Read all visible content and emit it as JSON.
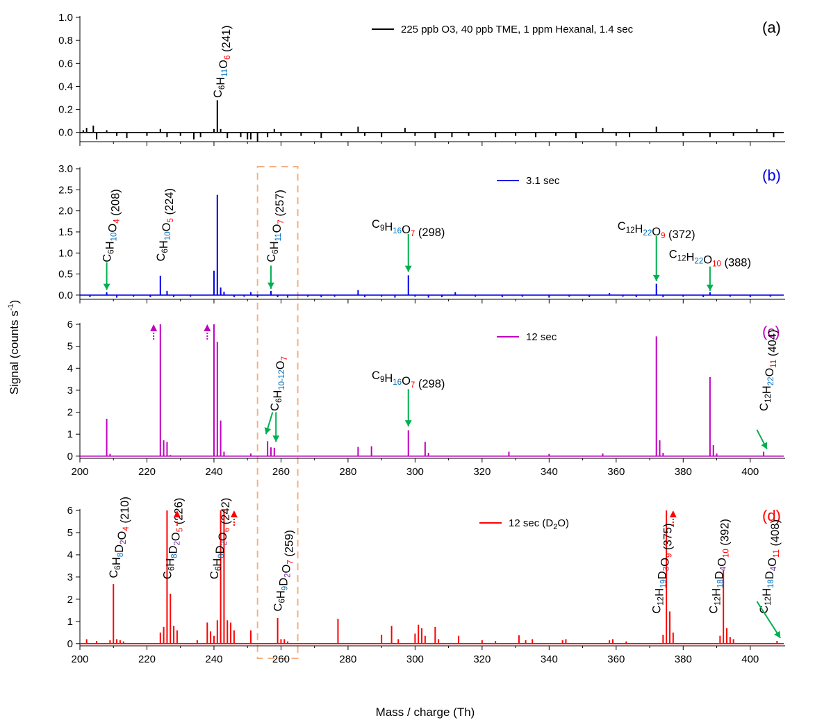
{
  "figure": {
    "ylabel": "Signal (counts s",
    "ylabel_sup": "-1",
    "ylabel_close": ")",
    "xlabel": "Mass / charge (Th)"
  },
  "colors": {
    "a": "#000000",
    "b": "#0000e6",
    "c": "#c000c0",
    "d": "#ff0000",
    "H": "#0070c0",
    "O": "#ff0000",
    "D": "#7030a0",
    "arrow": "#00b050",
    "box": "#f4b183"
  },
  "chart_data": [
    {
      "type": "line",
      "panel": "(a)",
      "legend": "225 ppb O3, 40 ppb TME, 1 ppm Hexanal, 1.4 sec",
      "xlim": [
        200,
        410
      ],
      "ylim": [
        -0.08,
        1.0
      ],
      "yticks": [
        0.0,
        0.2,
        0.4,
        0.6,
        0.8,
        1.0
      ],
      "peaks": [
        [
          201,
          0.02
        ],
        [
          202,
          0.04
        ],
        [
          204,
          0.06
        ],
        [
          205,
          -0.06
        ],
        [
          208,
          0.02
        ],
        [
          211,
          -0.03
        ],
        [
          214,
          -0.05
        ],
        [
          220,
          -0.03
        ],
        [
          224,
          0.03
        ],
        [
          226,
          -0.04
        ],
        [
          230,
          -0.03
        ],
        [
          234,
          -0.06
        ],
        [
          236,
          -0.04
        ],
        [
          240,
          0.03
        ],
        [
          241,
          0.28
        ],
        [
          242,
          0.03
        ],
        [
          244,
          -0.05
        ],
        [
          248,
          -0.04
        ],
        [
          250,
          -0.06
        ],
        [
          251,
          -0.06
        ],
        [
          253,
          -0.08
        ],
        [
          256,
          -0.04
        ],
        [
          258,
          0.03
        ],
        [
          260,
          -0.03
        ],
        [
          266,
          -0.03
        ],
        [
          272,
          -0.05
        ],
        [
          278,
          -0.03
        ],
        [
          283,
          0.05
        ],
        [
          285,
          -0.03
        ],
        [
          290,
          -0.04
        ],
        [
          297,
          0.04
        ],
        [
          300,
          -0.03
        ],
        [
          306,
          -0.05
        ],
        [
          311,
          -0.04
        ],
        [
          316,
          -0.03
        ],
        [
          324,
          -0.04
        ],
        [
          330,
          -0.03
        ],
        [
          336,
          -0.04
        ],
        [
          342,
          -0.03
        ],
        [
          348,
          -0.05
        ],
        [
          356,
          0.04
        ],
        [
          360,
          -0.03
        ],
        [
          364,
          -0.04
        ],
        [
          372,
          0.05
        ],
        [
          380,
          -0.03
        ],
        [
          388,
          -0.04
        ],
        [
          395,
          -0.03
        ],
        [
          402,
          0.03
        ],
        [
          407,
          -0.04
        ]
      ],
      "labels": [
        {
          "x": 241,
          "y": 0.3,
          "parts": [
            "C",
            "6",
            "H",
            "11",
            "O",
            "6"
          ],
          "mass": "(241)",
          "rot": true
        }
      ]
    },
    {
      "type": "line",
      "panel": "(b)",
      "legend": "3.1 sec",
      "xlim": [
        200,
        410
      ],
      "ylim": [
        -0.1,
        3.0
      ],
      "yticks": [
        0.0,
        0.5,
        1.0,
        1.5,
        2.0,
        2.5,
        3.0
      ],
      "peaks": [
        [
          203,
          -0.05
        ],
        [
          208,
          0.07
        ],
        [
          211,
          -0.06
        ],
        [
          216,
          -0.04
        ],
        [
          221,
          -0.05
        ],
        [
          224,
          0.46
        ],
        [
          226,
          0.1
        ],
        [
          228,
          -0.05
        ],
        [
          233,
          -0.04
        ],
        [
          240,
          0.58
        ],
        [
          241,
          2.38
        ],
        [
          242,
          0.18
        ],
        [
          243,
          0.08
        ],
        [
          246,
          -0.05
        ],
        [
          249,
          -0.04
        ],
        [
          251,
          0.07
        ],
        [
          253,
          -0.05
        ],
        [
          257,
          0.1
        ],
        [
          259,
          -0.05
        ],
        [
          262,
          -0.06
        ],
        [
          268,
          -0.04
        ],
        [
          272,
          -0.05
        ],
        [
          276,
          -0.04
        ],
        [
          283,
          0.12
        ],
        [
          285,
          -0.05
        ],
        [
          290,
          -0.04
        ],
        [
          294,
          -0.06
        ],
        [
          298,
          0.47
        ],
        [
          300,
          -0.04
        ],
        [
          304,
          -0.06
        ],
        [
          308,
          -0.05
        ],
        [
          312,
          0.07
        ],
        [
          318,
          -0.04
        ],
        [
          326,
          -0.05
        ],
        [
          332,
          -0.04
        ],
        [
          340,
          -0.06
        ],
        [
          346,
          -0.04
        ],
        [
          352,
          -0.05
        ],
        [
          358,
          0.05
        ],
        [
          362,
          -0.04
        ],
        [
          366,
          -0.05
        ],
        [
          372,
          0.27
        ],
        [
          374,
          -0.05
        ],
        [
          380,
          -0.04
        ],
        [
          386,
          -0.05
        ],
        [
          388,
          0.07
        ],
        [
          394,
          -0.04
        ],
        [
          400,
          -0.05
        ],
        [
          406,
          -0.04
        ]
      ],
      "labels": [
        {
          "x": 208,
          "y": 0.78,
          "parts": [
            "C",
            "6",
            "H",
            "10",
            "O",
            "4"
          ],
          "mass": "(208)",
          "rot": true
        },
        {
          "x": 224,
          "y": 0.8,
          "parts": [
            "C",
            "6",
            "H",
            "10",
            "O",
            "5"
          ],
          "mass": "(224)",
          "rot": true
        },
        {
          "x": 257,
          "y": 0.78,
          "parts": [
            "C",
            "6",
            "H",
            "11",
            "O",
            "7"
          ],
          "mass": "(257)",
          "rot": true
        },
        {
          "x": 298,
          "y": 1.6,
          "parts": [
            "C",
            "9",
            "H",
            "16",
            "O",
            "7"
          ],
          "mass": "(298)",
          "rot": false
        },
        {
          "x": 372,
          "y": 1.55,
          "parts": [
            "C",
            "12",
            "H",
            "22",
            "O",
            "9"
          ],
          "mass": "(372)",
          "rot": false
        },
        {
          "x": 388,
          "y": 0.88,
          "parts": [
            "C",
            "12",
            "H",
            "22",
            "O",
            "10"
          ],
          "mass": "(388)",
          "rot": false
        }
      ]
    },
    {
      "type": "line",
      "panel": "(c)",
      "legend": "12 sec",
      "xlim": [
        200,
        410
      ],
      "ylim": [
        -0.1,
        6.0
      ],
      "yticks": [
        0,
        1,
        2,
        3,
        4,
        5,
        6
      ],
      "peaks": [
        [
          208,
          1.7
        ],
        [
          209,
          0.1
        ],
        [
          224,
          6.0
        ],
        [
          225,
          0.72
        ],
        [
          226,
          0.65
        ],
        [
          227,
          0.05
        ],
        [
          240,
          6.0
        ],
        [
          241,
          5.2
        ],
        [
          242,
          1.62
        ],
        [
          243,
          0.2
        ],
        [
          251,
          0.12
        ],
        [
          256,
          0.68
        ],
        [
          257,
          0.4
        ],
        [
          258,
          0.38
        ],
        [
          283,
          0.42
        ],
        [
          287,
          0.45
        ],
        [
          298,
          1.18
        ],
        [
          303,
          0.65
        ],
        [
          304,
          0.15
        ],
        [
          328,
          0.2
        ],
        [
          340,
          0.1
        ],
        [
          356,
          0.12
        ],
        [
          372,
          5.45
        ],
        [
          373,
          0.72
        ],
        [
          374,
          0.15
        ],
        [
          388,
          3.6
        ],
        [
          389,
          0.5
        ],
        [
          390,
          0.12
        ],
        [
          404,
          0.2
        ]
      ],
      "labels": [
        {
          "x": 258,
          "y": 2.05,
          "parts": [
            "C",
            "6",
            "H",
            "10-12",
            "O",
            "7"
          ],
          "mass": "",
          "rot": true
        },
        {
          "x": 298,
          "y": 3.5,
          "parts": [
            "C",
            "9",
            "H",
            "16",
            "O",
            "7"
          ],
          "mass": "(298)",
          "rot": false
        },
        {
          "x": 404,
          "y": 2.05,
          "parts": [
            "C",
            "12",
            "H",
            "22",
            "O",
            "11"
          ],
          "mass": "(404)",
          "rot": true
        }
      ]
    },
    {
      "type": "line",
      "panel": "(d)",
      "legend": "12 sec (D",
      "legend_sub": "2",
      "legend_end": "O)",
      "xlim": [
        200,
        410
      ],
      "ylim": [
        -0.1,
        6.0
      ],
      "xticks": [
        200,
        220,
        240,
        260,
        280,
        300,
        320,
        340,
        360,
        380,
        400
      ],
      "yticks": [
        0,
        1,
        2,
        3,
        4,
        5,
        6
      ],
      "peaks": [
        [
          202,
          0.2
        ],
        [
          205,
          0.12
        ],
        [
          209,
          0.15
        ],
        [
          210,
          2.68
        ],
        [
          211,
          0.2
        ],
        [
          212,
          0.15
        ],
        [
          213,
          0.1
        ],
        [
          224,
          0.5
        ],
        [
          225,
          0.75
        ],
        [
          226,
          6.0
        ],
        [
          227,
          2.25
        ],
        [
          228,
          0.8
        ],
        [
          229,
          0.6
        ],
        [
          235,
          0.15
        ],
        [
          238,
          0.95
        ],
        [
          239,
          0.55
        ],
        [
          240,
          0.35
        ],
        [
          241,
          1.05
        ],
        [
          242,
          6.0
        ],
        [
          243,
          6.0
        ],
        [
          244,
          1.05
        ],
        [
          245,
          0.95
        ],
        [
          246,
          0.6
        ],
        [
          251,
          0.6
        ],
        [
          259,
          1.15
        ],
        [
          260,
          0.2
        ],
        [
          261,
          0.2
        ],
        [
          262,
          0.1
        ],
        [
          277,
          1.12
        ],
        [
          290,
          0.4
        ],
        [
          293,
          0.8
        ],
        [
          295,
          0.2
        ],
        [
          300,
          0.45
        ],
        [
          301,
          0.85
        ],
        [
          302,
          0.7
        ],
        [
          303,
          0.35
        ],
        [
          306,
          0.75
        ],
        [
          307,
          0.2
        ],
        [
          313,
          0.35
        ],
        [
          320,
          0.15
        ],
        [
          324,
          0.12
        ],
        [
          331,
          0.38
        ],
        [
          333,
          0.15
        ],
        [
          335,
          0.2
        ],
        [
          344,
          0.15
        ],
        [
          345,
          0.2
        ],
        [
          358,
          0.15
        ],
        [
          359,
          0.2
        ],
        [
          363,
          0.1
        ],
        [
          374,
          0.4
        ],
        [
          375,
          6.0
        ],
        [
          376,
          1.45
        ],
        [
          377,
          0.5
        ],
        [
          391,
          0.35
        ],
        [
          392,
          3.3
        ],
        [
          393,
          0.7
        ],
        [
          394,
          0.3
        ],
        [
          395,
          0.2
        ],
        [
          408,
          0.12
        ]
      ],
      "labels": [
        {
          "x": 210,
          "y": 2.95,
          "parts": [
            "C",
            "6",
            "H",
            "8",
            "D",
            "2",
            "O",
            "4"
          ],
          "mass": "(210)",
          "rot": true
        },
        {
          "x": 226,
          "y": 2.9,
          "parts": [
            "C",
            "6",
            "H",
            "8",
            "D",
            "2",
            "O",
            "5"
          ],
          "mass": "(226)",
          "rot": true
        },
        {
          "x": 240,
          "y": 2.9,
          "parts": [
            "C",
            "6",
            "H",
            "8",
            "D",
            "2",
            "O",
            "6"
          ],
          "mass": "(242)",
          "rot": true
        },
        {
          "x": 259,
          "y": 1.45,
          "parts": [
            "C",
            "6",
            "H",
            "9",
            "D",
            "2",
            "O",
            "7"
          ],
          "mass": "(259)",
          "rot": true
        },
        {
          "x": 372,
          "y": 1.35,
          "parts": [
            "C",
            "12",
            "H",
            "19",
            "D",
            "3",
            "O",
            "9"
          ],
          "mass": "(375)",
          "rot": true
        },
        {
          "x": 389,
          "y": 1.35,
          "parts": [
            "C",
            "12",
            "H",
            "18",
            "D",
            "4",
            "O",
            "10"
          ],
          "mass": "(392)",
          "rot": true
        },
        {
          "x": 404,
          "y": 1.35,
          "parts": [
            "C",
            "12",
            "H",
            "18",
            "D",
            "4",
            "O",
            "11"
          ],
          "mass": "(408)",
          "rot": true
        }
      ]
    }
  ]
}
